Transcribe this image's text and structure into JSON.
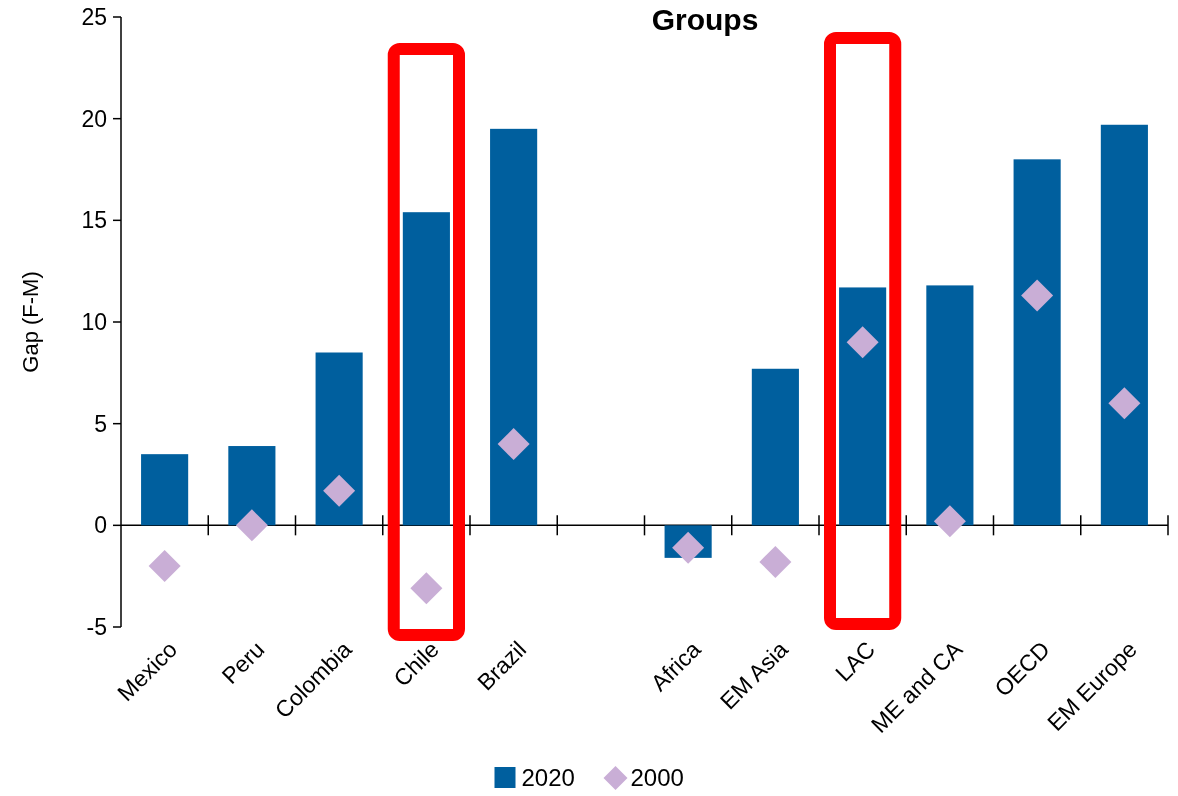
{
  "chart_data": {
    "type": "bar",
    "title": "Groups",
    "ylabel": "Gap (F-M)",
    "categories": [
      "Mexico",
      "Peru",
      "Colombia",
      "Chile",
      "Brazil",
      null,
      "Africa",
      "EM Asia",
      "LAC",
      "ME and CA",
      "OECD",
      "EM Europe"
    ],
    "series": [
      {
        "name": "2020",
        "color": "#005f9e",
        "values": [
          3.5,
          3.9,
          8.5,
          15.4,
          19.5,
          null,
          -1.6,
          7.7,
          11.7,
          11.8,
          18.0,
          19.7
        ]
      },
      {
        "name": "2000",
        "type": "scatter",
        "color": "#c9aed6",
        "values": [
          -2.0,
          0.0,
          1.7,
          -3.1,
          4.0,
          null,
          -1.1,
          -1.8,
          9.0,
          0.2,
          11.3,
          6.0
        ]
      }
    ],
    "ylim": [
      -5,
      25
    ],
    "yticks": [
      -5,
      0,
      5,
      10,
      15,
      20,
      25
    ],
    "marker": "diamond",
    "legend": "bottom"
  }
}
